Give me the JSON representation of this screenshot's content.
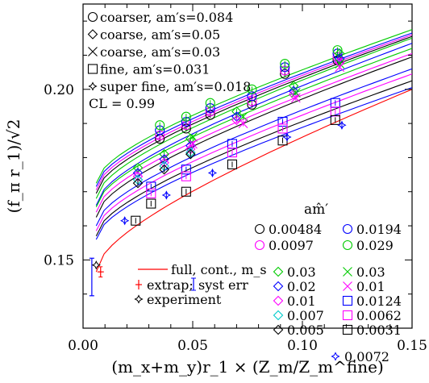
{
  "chart_data": {
    "type": "scatter",
    "title": "",
    "xlabel": "(m_x+m_y)r_1 × (Z_m/Z_m^fine)",
    "ylabel": "(f_π r_1)/√2",
    "xlim": [
      0.0,
      0.15
    ],
    "ylim": [
      0.13,
      0.225
    ],
    "x_ticks": [
      0.0,
      0.05,
      0.1,
      0.15
    ],
    "x_tick_labels": [
      "0.00",
      "0.05",
      "0.10",
      "0.15"
    ],
    "y_ticks": [
      0.15,
      0.2
    ],
    "y_tick_labels": [
      "0.15",
      "0.20"
    ],
    "grid": false,
    "legend_ensembles": [
      {
        "symbol": "circle",
        "label": "coarser, am′s=0.084"
      },
      {
        "symbol": "diamond",
        "label": "coarse, am′s=0.05"
      },
      {
        "symbol": "cross",
        "label": "coarse, am′s=0.03"
      },
      {
        "symbol": "square",
        "label": "fine, am′s=0.031"
      },
      {
        "symbol": "burst",
        "label": "super fine, am′s=0.018"
      }
    ],
    "cl_text": "CL = 0.99",
    "legend_header": "am̂′",
    "legend_masses": [
      {
        "symbol": "circle",
        "color": "#000000",
        "label": "0.00484"
      },
      {
        "symbol": "circle",
        "color": "#0000ff",
        "label": "0.0194"
      },
      {
        "symbol": "circle",
        "color": "#ff00ff",
        "label": "0.0097"
      },
      {
        "symbol": "circle",
        "color": "#00cc00",
        "label": "0.029"
      },
      {
        "symbol": "diamond",
        "color": "#00cc00",
        "label": "0.03"
      },
      {
        "symbol": "cross",
        "color": "#00cc00",
        "label": "0.03"
      },
      {
        "symbol": "diamond",
        "color": "#0000ff",
        "label": "0.02"
      },
      {
        "symbol": "cross",
        "color": "#ff00ff",
        "label": "0.01"
      },
      {
        "symbol": "diamond",
        "color": "#ff00ff",
        "label": "0.01"
      },
      {
        "symbol": "square",
        "color": "#0000ff",
        "label": "0.0124"
      },
      {
        "symbol": "diamond",
        "color": "#00cccc",
        "label": "0.007"
      },
      {
        "symbol": "square",
        "color": "#ff00ff",
        "label": "0.0062"
      },
      {
        "symbol": "diamond",
        "color": "#000000",
        "label": "0.005"
      },
      {
        "symbol": "square",
        "color": "#000000",
        "label": "0.0031"
      },
      {
        "symbol": "burst",
        "color": "#0000ff",
        "label": "0.0072"
      }
    ],
    "legend_special": [
      {
        "kind": "line",
        "color": "#ff0000",
        "label": "full, cont., m_s"
      },
      {
        "kind": "extrap",
        "color": "#ff0000",
        "label": "extrap; ",
        "label2": "syst err",
        "color2": "#0000ff"
      },
      {
        "kind": "burst",
        "color": "#000000",
        "label": "experiment"
      }
    ],
    "series": [
      {
        "symbol": "circle",
        "color": "#000000",
        "points": [
          [
            0.035,
            0.1855
          ],
          [
            0.047,
            0.1885
          ],
          [
            0.058,
            0.1925
          ],
          [
            0.077,
            0.1955
          ],
          [
            0.092,
            0.2045
          ],
          [
            0.116,
            0.2085
          ]
        ]
      },
      {
        "symbol": "circle",
        "color": "#ff00ff",
        "points": [
          [
            0.035,
            0.1865
          ],
          [
            0.047,
            0.1895
          ],
          [
            0.058,
            0.1935
          ],
          [
            0.077,
            0.1965
          ],
          [
            0.092,
            0.2055
          ],
          [
            0.116,
            0.2095
          ]
        ]
      },
      {
        "symbol": "circle",
        "color": "#0000ff",
        "points": [
          [
            0.035,
            0.188
          ],
          [
            0.047,
            0.1905
          ],
          [
            0.058,
            0.1945
          ],
          [
            0.077,
            0.198
          ],
          [
            0.092,
            0.2065
          ],
          [
            0.116,
            0.2105
          ]
        ]
      },
      {
        "symbol": "circle",
        "color": "#00cc00",
        "points": [
          [
            0.035,
            0.1895
          ],
          [
            0.047,
            0.192
          ],
          [
            0.058,
            0.196
          ],
          [
            0.077,
            0.2
          ],
          [
            0.092,
            0.2075
          ],
          [
            0.116,
            0.2115
          ]
        ]
      },
      {
        "symbol": "diamond",
        "color": "#00cc00",
        "points": [
          [
            0.025,
            0.177
          ],
          [
            0.037,
            0.181
          ],
          [
            0.049,
            0.1855
          ],
          [
            0.07,
            0.1935
          ],
          [
            0.096,
            0.201
          ],
          [
            0.117,
            0.2105
          ]
        ]
      },
      {
        "symbol": "diamond",
        "color": "#0000ff",
        "points": [
          [
            0.025,
            0.1755
          ],
          [
            0.037,
            0.1795
          ],
          [
            0.049,
            0.1835
          ],
          [
            0.07,
            0.192
          ],
          [
            0.096,
            0.1995
          ],
          [
            0.117,
            0.209
          ]
        ]
      },
      {
        "symbol": "diamond",
        "color": "#ff00ff",
        "points": [
          [
            0.025,
            0.1745
          ],
          [
            0.037,
            0.1785
          ],
          [
            0.049,
            0.1825
          ],
          [
            0.07,
            0.191
          ],
          [
            0.096,
            0.1985
          ],
          [
            0.117,
            0.208
          ]
        ]
      },
      {
        "symbol": "diamond",
        "color": "#00cccc",
        "points": [
          [
            0.025,
            0.1735
          ],
          [
            0.037,
            0.1775
          ],
          [
            0.049,
            0.1815
          ]
        ]
      },
      {
        "symbol": "diamond",
        "color": "#000000",
        "points": [
          [
            0.025,
            0.1725
          ],
          [
            0.037,
            0.1765
          ],
          [
            0.049,
            0.181
          ]
        ]
      },
      {
        "symbol": "cross",
        "color": "#00cc00",
        "points": [
          [
            0.05,
            0.186
          ],
          [
            0.073,
            0.192
          ],
          [
            0.097,
            0.199
          ],
          [
            0.117,
            0.2075
          ]
        ]
      },
      {
        "symbol": "cross",
        "color": "#ff00ff",
        "points": [
          [
            0.05,
            0.184
          ],
          [
            0.073,
            0.19
          ],
          [
            0.097,
            0.1975
          ],
          [
            0.117,
            0.2065
          ]
        ]
      },
      {
        "symbol": "square",
        "color": "#0000ff",
        "points": [
          [
            0.031,
            0.1715
          ],
          [
            0.047,
            0.1765
          ],
          [
            0.068,
            0.184
          ],
          [
            0.091,
            0.1905
          ],
          [
            0.115,
            0.196
          ]
        ]
      },
      {
        "symbol": "square",
        "color": "#ff00ff",
        "points": [
          [
            0.031,
            0.1695
          ],
          [
            0.047,
            0.1745
          ],
          [
            0.068,
            0.1815
          ],
          [
            0.091,
            0.1885
          ],
          [
            0.115,
            0.1935
          ]
        ]
      },
      {
        "symbol": "square",
        "color": "#000000",
        "points": [
          [
            0.024,
            0.1615
          ],
          [
            0.031,
            0.1665
          ],
          [
            0.047,
            0.17
          ],
          [
            0.068,
            0.178
          ],
          [
            0.091,
            0.185
          ],
          [
            0.115,
            0.191
          ]
        ]
      },
      {
        "symbol": "burst",
        "color": "#0000ff",
        "points": [
          [
            0.019,
            0.1615
          ],
          [
            0.038,
            0.169
          ],
          [
            0.059,
            0.1755
          ],
          [
            0.093,
            0.186
          ],
          [
            0.118,
            0.1895
          ]
        ]
      }
    ],
    "fit_curves": [
      {
        "color": "#00cc00",
        "x0": 0.006,
        "y0": 0.1725,
        "x1": 0.15,
        "y1": 0.2175
      },
      {
        "color": "#0000ff",
        "x0": 0.006,
        "y0": 0.1715,
        "x1": 0.15,
        "y1": 0.2165
      },
      {
        "color": "#ff00ff",
        "x0": 0.006,
        "y0": 0.1705,
        "x1": 0.15,
        "y1": 0.216
      },
      {
        "color": "#000000",
        "x0": 0.006,
        "y0": 0.1695,
        "x1": 0.15,
        "y1": 0.2155
      },
      {
        "color": "#00cc00",
        "x0": 0.006,
        "y0": 0.168,
        "x1": 0.15,
        "y1": 0.215
      },
      {
        "color": "#0000ff",
        "x0": 0.006,
        "y0": 0.166,
        "x1": 0.15,
        "y1": 0.2135
      },
      {
        "color": "#00cc00",
        "x0": 0.006,
        "y0": 0.1655,
        "x1": 0.15,
        "y1": 0.212
      },
      {
        "color": "#ff00ff",
        "x0": 0.006,
        "y0": 0.164,
        "x1": 0.15,
        "y1": 0.2105
      },
      {
        "color": "#000000",
        "x0": 0.006,
        "y0": 0.1625,
        "x1": 0.15,
        "y1": 0.2095
      },
      {
        "color": "#0000ff",
        "x0": 0.006,
        "y0": 0.16,
        "x1": 0.15,
        "y1": 0.206
      },
      {
        "color": "#ff00ff",
        "x0": 0.006,
        "y0": 0.1585,
        "x1": 0.15,
        "y1": 0.2045
      },
      {
        "color": "#000000",
        "x0": 0.006,
        "y0": 0.157,
        "x1": 0.15,
        "y1": 0.2025
      },
      {
        "color": "#0000ff",
        "x0": 0.006,
        "y0": 0.156,
        "x1": 0.15,
        "y1": 0.2005
      },
      {
        "color": "#ff0000",
        "x0": 0.006,
        "y0": 0.1465,
        "x1": 0.15,
        "y1": 0.2
      }
    ],
    "extrapolation": {
      "x": 0.008,
      "y": 0.1465,
      "err": 0.0015,
      "color": "#ff0000"
    },
    "systematic": {
      "x": 0.004,
      "y": 0.146,
      "lo": 0.1395,
      "hi": 0.1505,
      "color": "#0000ff"
    },
    "experiment": {
      "x": 0.006,
      "y": 0.1485,
      "color": "#000000"
    }
  }
}
